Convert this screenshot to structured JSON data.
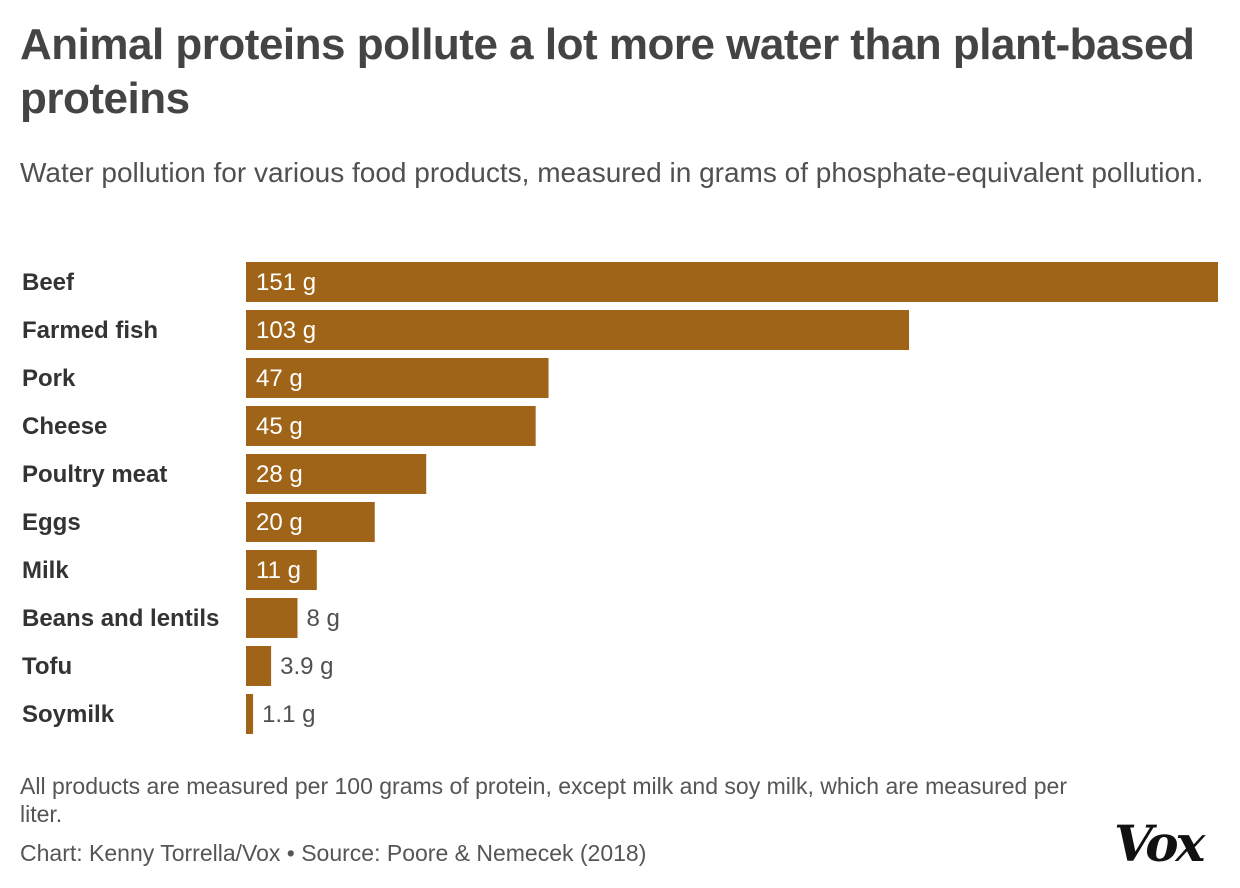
{
  "chart_data": {
    "type": "bar",
    "orientation": "horizontal",
    "title": "Animal proteins pollute a lot more water than plant-based proteins",
    "subtitle": "Water pollution for various food products, measured in grams of phosphate-equivalent pollution.",
    "categories": [
      "Beef",
      "Farmed fish",
      "Pork",
      "Cheese",
      "Poultry meat",
      "Eggs",
      "Milk",
      "Beans and lentils",
      "Tofu",
      "Soymilk"
    ],
    "values": [
      151,
      103,
      47,
      45,
      28,
      20,
      11,
      8,
      3.9,
      1.1
    ],
    "value_labels": [
      "151 g",
      "103 g",
      "47 g",
      "45 g",
      "28 g",
      "20 g",
      "11 g",
      "8 g",
      "3.9 g",
      "1.1 g"
    ],
    "unit": "g",
    "xlim": [
      0,
      151
    ],
    "grid": false,
    "bar_color": "#a06418"
  },
  "footer": {
    "note": "All products are measured per 100 grams of protein, except milk and soy milk, which are measured per liter.",
    "credit": "Chart: Kenny Torrella/Vox • Source: Poore & Nemecek (2018)",
    "logo": "Vox"
  }
}
